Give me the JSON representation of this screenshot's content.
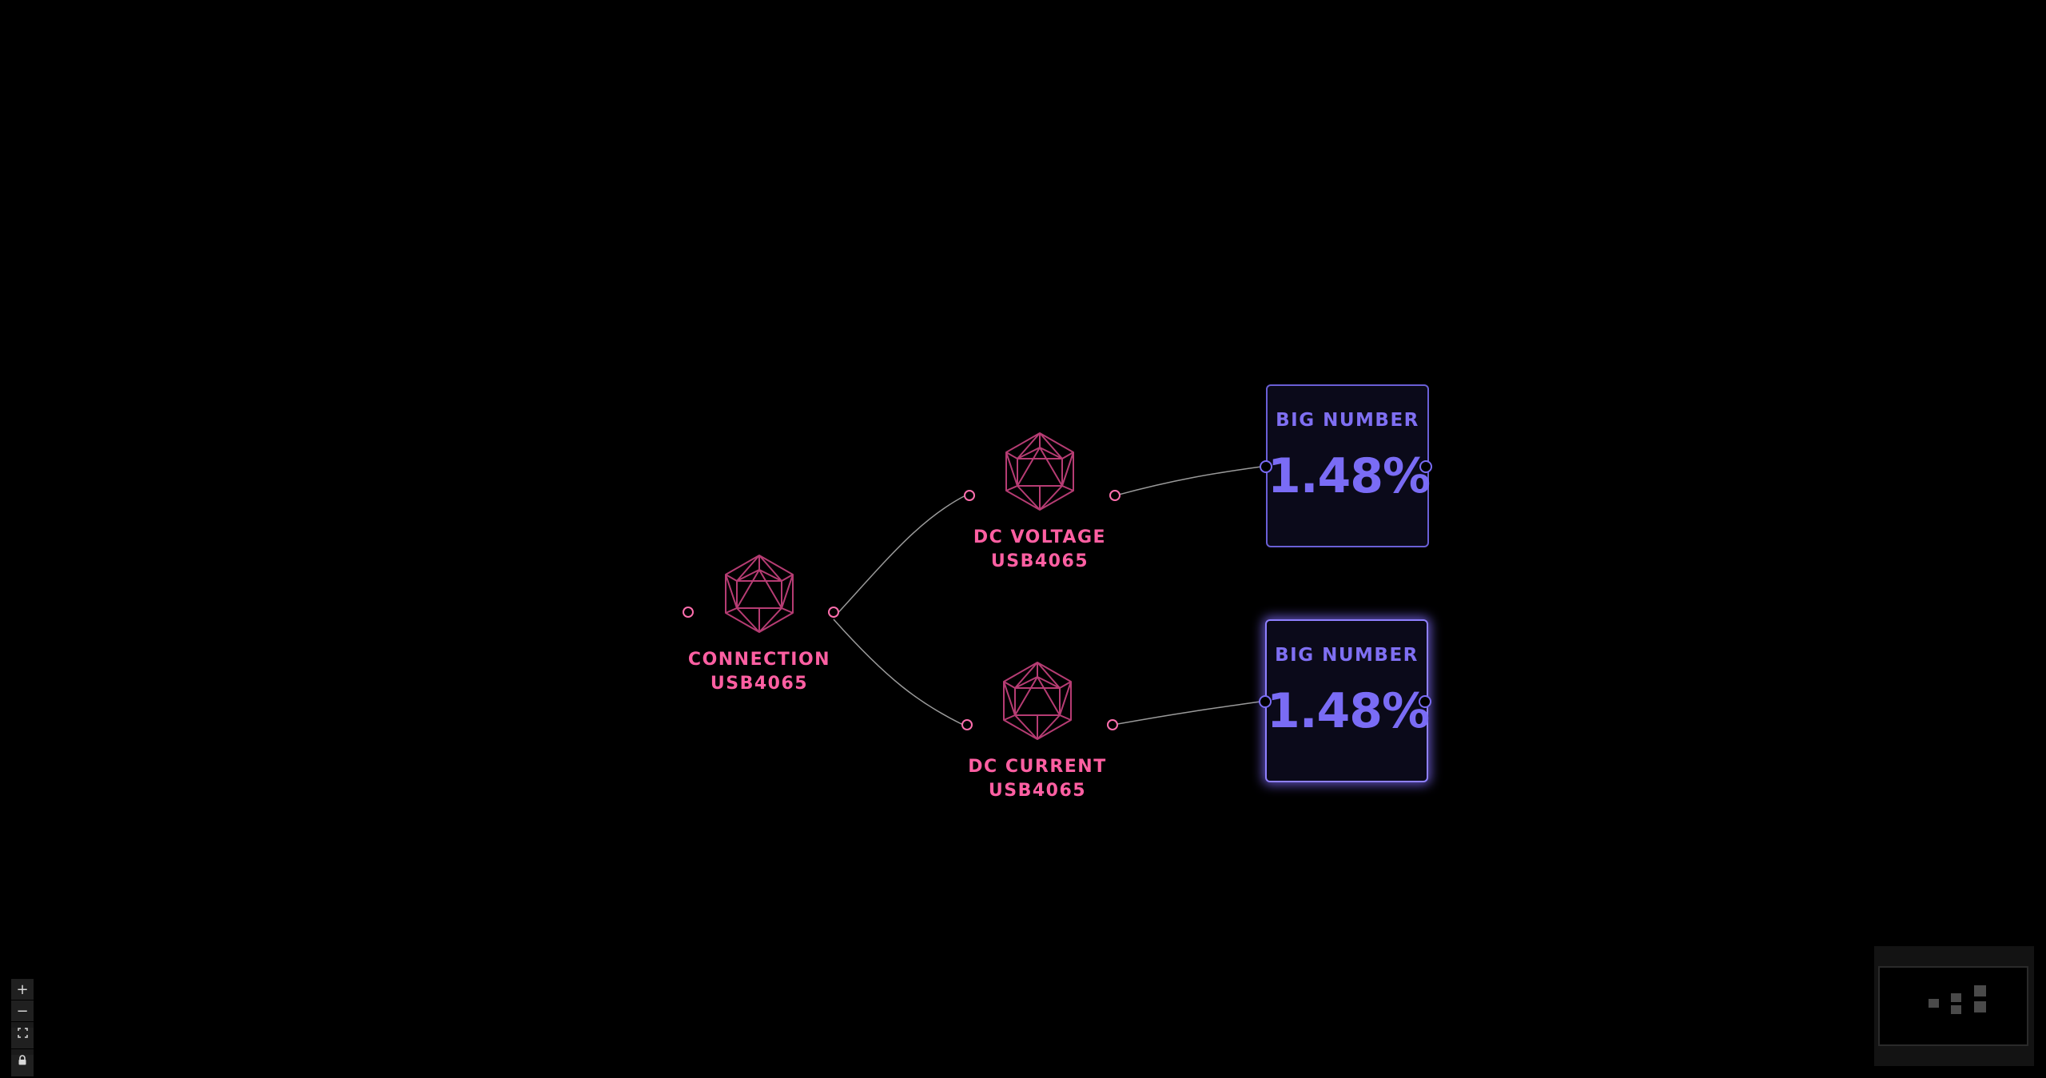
{
  "nodes": {
    "connection": {
      "label_line1": "CONNECTION",
      "label_line2": "USB4065",
      "icon": "icosahedron-icon"
    },
    "dc_voltage": {
      "label_line1": "DC VOLTAGE",
      "label_line2": "USB4065",
      "icon": "icosahedron-icon"
    },
    "dc_current": {
      "label_line1": "DC CURRENT",
      "label_line2": "USB4065",
      "icon": "icosahedron-icon"
    },
    "big_number_1": {
      "title": "BIG NUMBER",
      "value": "1.48%"
    },
    "big_number_2": {
      "title": "BIG NUMBER",
      "value": "1.48%"
    }
  },
  "controls": {
    "zoom_in": "+",
    "zoom_out": "−",
    "fit_view": "fit-view-icon",
    "lock": "lock-icon"
  },
  "colors": {
    "background": "#000000",
    "device_accent": "#ff5fa2",
    "bignum_accent": "#7a6cf5",
    "edge": "#9a9a9a"
  }
}
